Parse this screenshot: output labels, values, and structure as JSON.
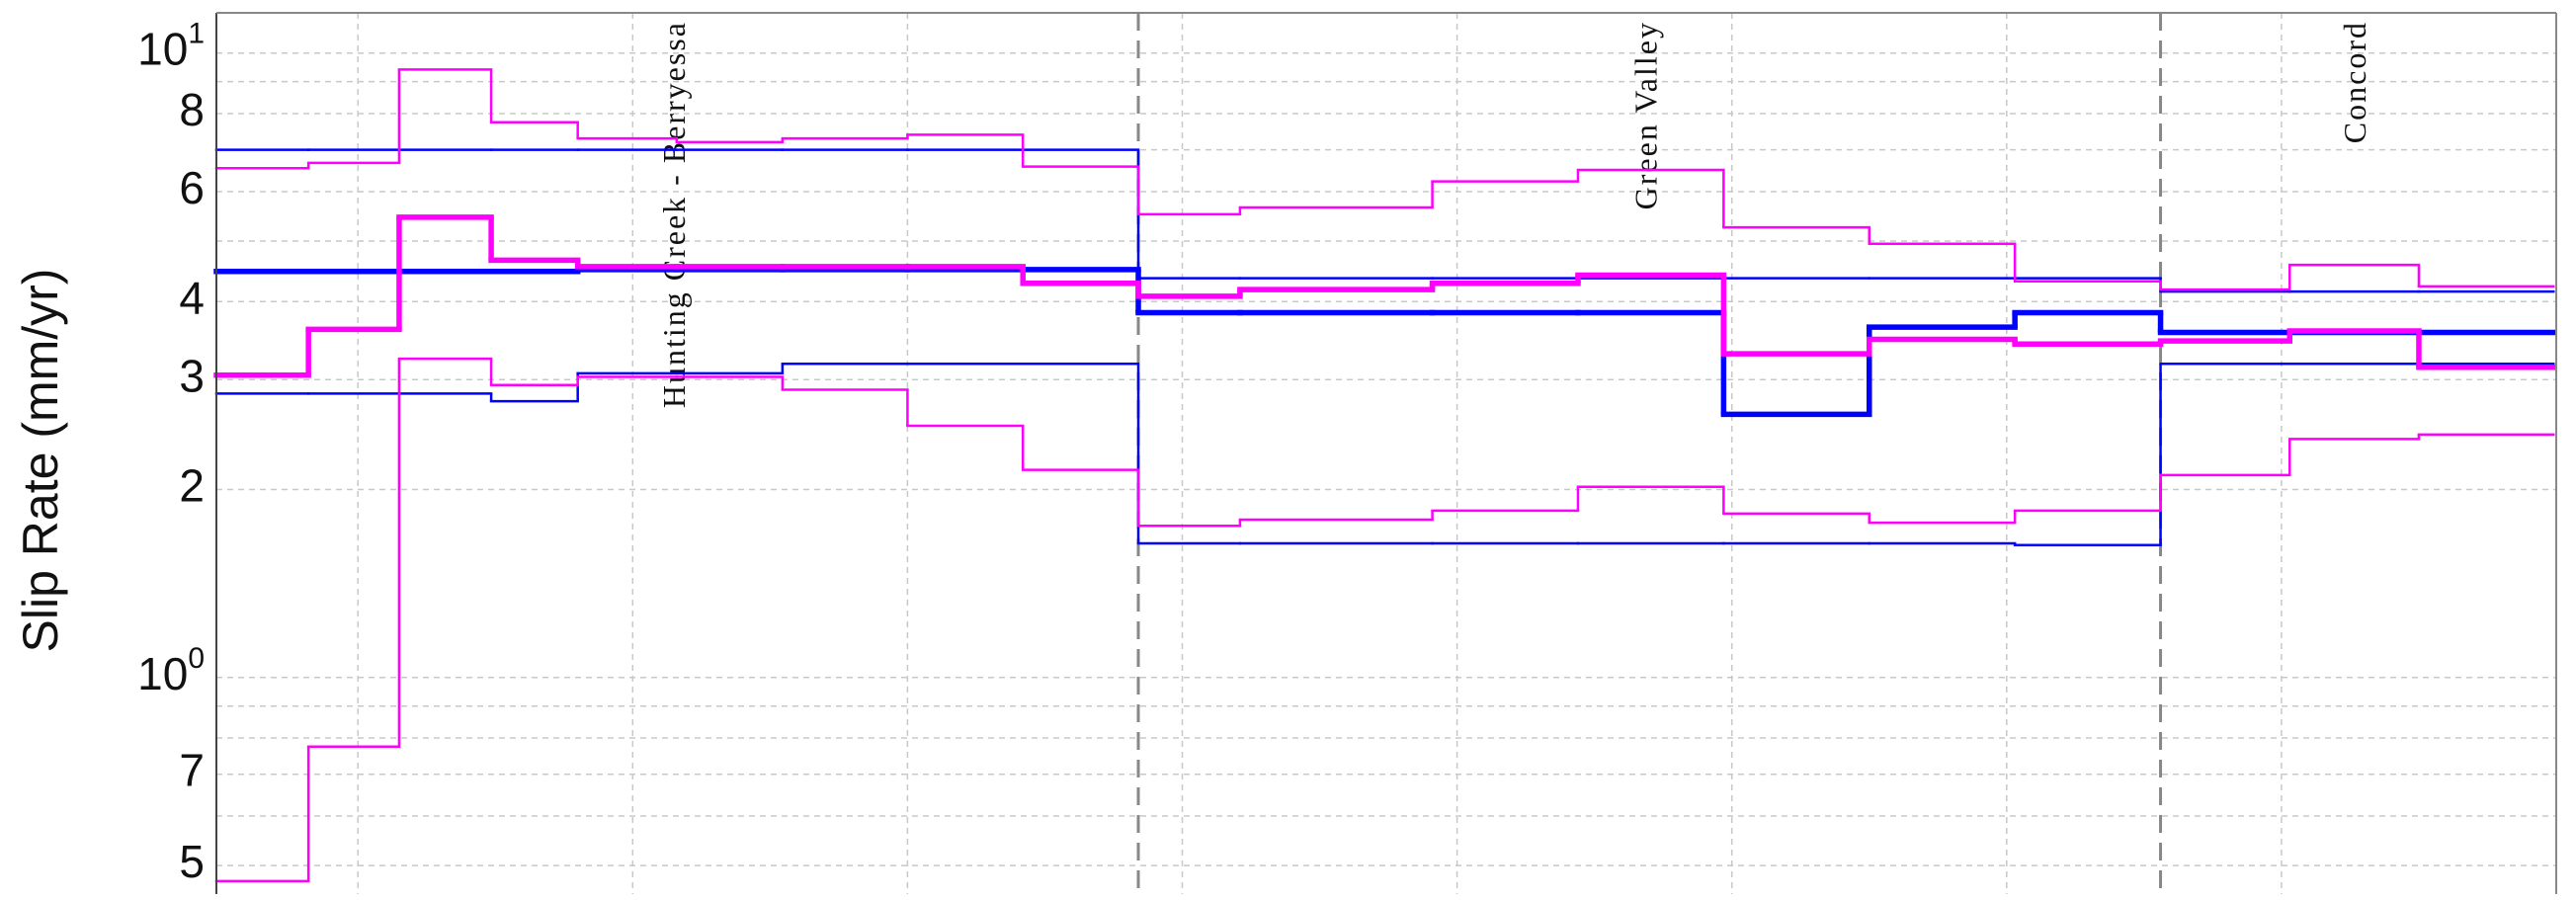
{
  "chart_data": {
    "type": "step",
    "ylabel": "Slip Rate (mm/yr)",
    "log_y": true,
    "grid": true,
    "ylim": [
      0.45,
      11.6
    ],
    "yticks": [
      {
        "value": 10,
        "label": "10",
        "exponent": "1"
      },
      8,
      6,
      4,
      3,
      2,
      {
        "value": 1,
        "label": "10",
        "exponent": "0"
      },
      {
        "value": 0.7,
        "label": "7"
      },
      {
        "value": 0.5,
        "label": "5"
      }
    ],
    "yminor": [
      9,
      7,
      5,
      0.9,
      0.8,
      0.6
    ],
    "xlim": [
      -0.515,
      8
    ],
    "xticks": [
      0,
      1,
      2,
      3,
      4,
      5,
      6,
      7,
      8
    ],
    "sections": [
      {
        "label": "Hunting Creek - Berryessa",
        "start": -0.515,
        "end": 2.84
      },
      {
        "label": "Green Valley",
        "start": 2.84,
        "end": 6.56
      },
      {
        "label": "Concord",
        "start": 6.56,
        "end": 8
      }
    ],
    "x_edges": [
      -0.515,
      -0.18,
      0.15,
      0.485,
      0.8,
      1.16,
      1.545,
      2.0,
      2.42,
      2.84,
      3.21,
      3.91,
      4.44,
      4.97,
      5.5,
      6.03,
      6.56,
      7.03,
      7.5,
      7.99
    ],
    "series": [
      {
        "color": "#0000ff",
        "line_width": 2.5,
        "values": [
          7.0,
          7.0,
          7.0,
          7.0,
          7.0,
          7.0,
          7.0,
          7.0,
          7.0,
          4.36,
          4.36,
          4.36,
          4.36,
          4.36,
          4.36,
          4.36,
          4.15,
          4.15,
          4.15
        ]
      },
      {
        "color": "#0000ff",
        "line_width": 2.5,
        "values": [
          2.85,
          2.85,
          2.85,
          2.77,
          3.07,
          3.07,
          3.18,
          3.18,
          3.18,
          1.64,
          1.64,
          1.64,
          1.64,
          1.64,
          1.64,
          1.63,
          3.18,
          3.18,
          3.18
        ]
      },
      {
        "color": "#0000ff",
        "line_width": 5.5,
        "values": [
          4.47,
          4.47,
          4.47,
          4.47,
          4.5,
          4.5,
          4.5,
          4.5,
          4.5,
          3.84,
          3.84,
          3.84,
          3.84,
          2.64,
          3.64,
          3.84,
          3.57,
          3.57,
          3.57
        ]
      },
      {
        "color": "#ff00ff",
        "line_width": 2.5,
        "values": [
          6.54,
          6.67,
          9.41,
          7.75,
          7.3,
          7.2,
          7.3,
          7.4,
          6.58,
          5.52,
          5.66,
          6.23,
          6.5,
          5.26,
          4.95,
          4.31,
          4.18,
          4.58,
          4.23
        ]
      },
      {
        "color": "#ff00ff",
        "line_width": 2.5,
        "values": [
          0.472,
          0.775,
          3.24,
          2.94,
          3.03,
          3.03,
          2.89,
          2.53,
          2.15,
          1.75,
          1.79,
          1.85,
          2.02,
          1.83,
          1.77,
          1.85,
          2.11,
          2.41,
          2.45
        ]
      },
      {
        "color": "#ff00ff",
        "line_width": 5.5,
        "values": [
          3.05,
          3.61,
          5.46,
          4.66,
          4.55,
          4.55,
          4.55,
          4.55,
          4.28,
          4.08,
          4.18,
          4.28,
          4.41,
          3.3,
          3.48,
          3.42,
          3.46,
          3.59,
          3.14
        ]
      }
    ]
  }
}
